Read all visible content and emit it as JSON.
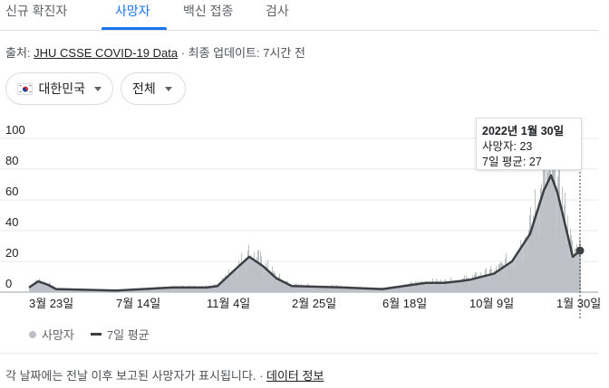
{
  "tabs": [
    {
      "label": "신규 확진자"
    },
    {
      "label": "사망자"
    },
    {
      "label": "백신 접종"
    },
    {
      "label": "검사"
    }
  ],
  "source": {
    "prefix": "출처: ",
    "link": "JHU CSSE COVID-19 Data",
    "suffix": " · 최종 업데이트: 7시간 전"
  },
  "filters": {
    "country": "대한민국",
    "range": "전체"
  },
  "tooltip": {
    "date": "2022년 1월 30일",
    "deaths": "사망자: 23",
    "avg": "7일 평균: 27"
  },
  "legend": {
    "deaths": "사망자",
    "avg": "7일 평균"
  },
  "footnote": {
    "text": "각 날짜에는 전날 이후 보고된 사망자가 표시됩니다.",
    "sep": " · ",
    "link": "데이터 정보"
  },
  "colors": {
    "bars": "#bdc1c6",
    "avg_line": "#3c4043",
    "accent": "#1a73e8"
  },
  "chart_data": {
    "type": "bar",
    "ylim": [
      0,
      100
    ],
    "yticks": [
      "0",
      "20",
      "40",
      "60",
      "80",
      "100"
    ],
    "xticks": [
      "3월 23일",
      "7월 14일",
      "11월 4일",
      "2월 25일",
      "6월 18일",
      "10월 9일",
      "1월 30일"
    ],
    "series": [
      {
        "name": "사망자",
        "type": "bar"
      },
      {
        "name": "7일 평균",
        "type": "line"
      }
    ],
    "avg_anchors": [
      [
        "3월 23일",
        3
      ],
      [
        "4월 10일",
        7
      ],
      [
        "5월 1일",
        5
      ],
      [
        "5월 20일",
        2
      ],
      [
        "7월 14일",
        1
      ],
      [
        "9월 10일",
        3
      ],
      [
        "11월 4일",
        3
      ],
      [
        "11월 20일",
        4
      ],
      [
        "12월 10일",
        15
      ],
      [
        "12월 25일",
        23
      ],
      [
        "1월 10일",
        17
      ],
      [
        "1월 25일",
        9
      ],
      [
        "2월 25일",
        4
      ],
      [
        "4월 15일",
        3
      ],
      [
        "6월 18일",
        2
      ],
      [
        "8월 10일",
        6
      ],
      [
        "9월 1일",
        6
      ],
      [
        "9월 20일",
        7
      ],
      [
        "10월 9일",
        8
      ],
      [
        "11월 1일",
        12
      ],
      [
        "11월 25일",
        20
      ],
      [
        "12월 10일",
        38
      ],
      [
        "12월 25일",
        66
      ],
      [
        "12월 30일",
        76
      ],
      [
        "1월 5일",
        65
      ],
      [
        "1월 15일",
        48
      ],
      [
        "1월 25일",
        23
      ],
      [
        "1월 30일",
        27
      ]
    ],
    "last_point": {
      "date": "2022년 1월 30일",
      "deaths": 23,
      "avg": 27
    }
  }
}
